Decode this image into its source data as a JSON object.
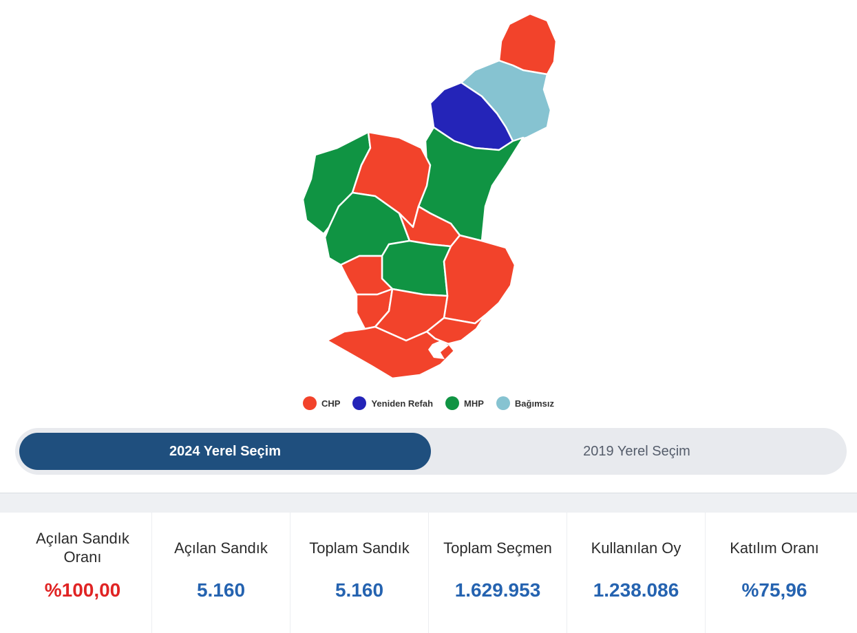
{
  "colors": {
    "chp": "#f2432b",
    "yeniden_refah": "#2424b8",
    "mhp": "#109443",
    "bagimsiz": "#86c3d1",
    "tab_active_bg": "#1f4f7e",
    "value_blue": "#2563b0",
    "value_red": "#e02424"
  },
  "legend": [
    {
      "key": "chp",
      "label": "CHP",
      "color": "#f2432b"
    },
    {
      "key": "yeniden_refah",
      "label": "Yeniden Refah",
      "color": "#2424b8"
    },
    {
      "key": "mhp",
      "label": "MHP",
      "color": "#109443"
    },
    {
      "key": "bagimsiz",
      "label": "Bağımsız",
      "color": "#86c3d1"
    }
  ],
  "tabs": {
    "active": "2024 Yerel Seçim",
    "inactive": "2019 Yerel Seçim"
  },
  "stats": [
    {
      "label": "Açılan Sandık Oranı",
      "value": "%100,00"
    },
    {
      "label": "Açılan Sandık",
      "value": "5.160"
    },
    {
      "label": "Toplam Sandık",
      "value": "5.160"
    },
    {
      "label": "Toplam Seçmen",
      "value": "1.629.953"
    },
    {
      "label": "Kullanılan Oy",
      "value": "1.238.086"
    },
    {
      "label": "Katılım Oranı",
      "value": "%75,96"
    }
  ]
}
